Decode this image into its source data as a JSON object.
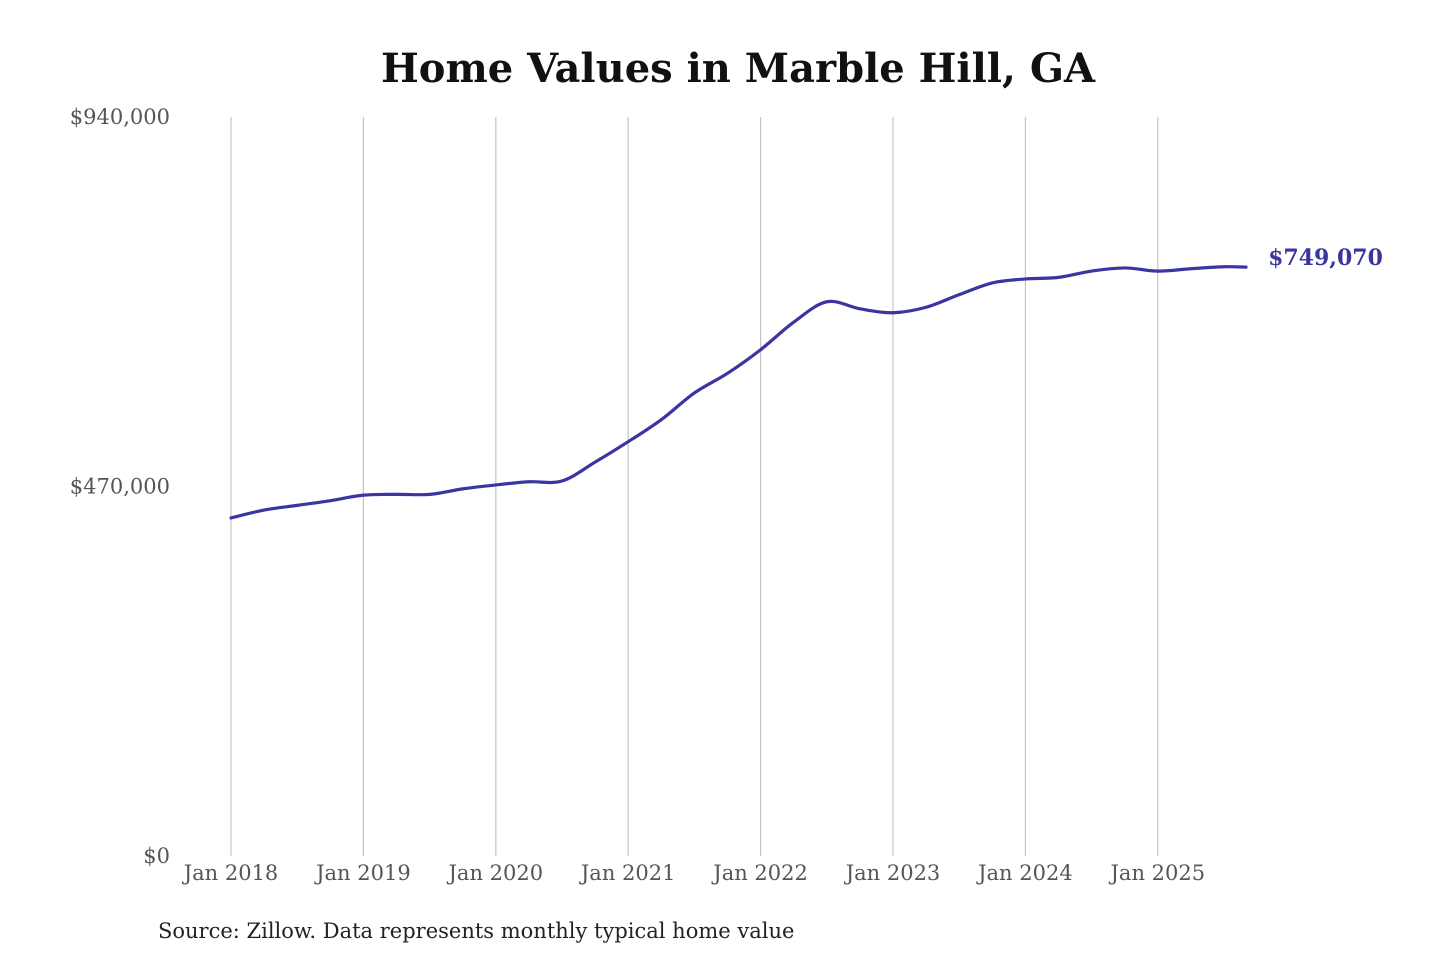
{
  "chart_data": {
    "type": "line",
    "title": "Home Values in Marble Hill, GA",
    "xlabel": "",
    "ylabel": "",
    "source": "Source: Zillow. Data represents monthly typical home value",
    "ylim": [
      0,
      940000
    ],
    "y_ticks": [
      {
        "value": 0,
        "label": "$0"
      },
      {
        "value": 470000,
        "label": "$470,000"
      },
      {
        "value": 940000,
        "label": "$940,000"
      }
    ],
    "x_ticks": [
      {
        "month_index": 0,
        "label": "Jan 2018"
      },
      {
        "month_index": 12,
        "label": "Jan 2019"
      },
      {
        "month_index": 24,
        "label": "Jan 2020"
      },
      {
        "month_index": 36,
        "label": "Jan 2021"
      },
      {
        "month_index": 48,
        "label": "Jan 2022"
      },
      {
        "month_index": 60,
        "label": "Jan 2023"
      },
      {
        "month_index": 72,
        "label": "Jan 2024"
      },
      {
        "month_index": 84,
        "label": "Jan 2025"
      }
    ],
    "x_unit": "months since Jan 2018",
    "grid": "vertical",
    "series": [
      {
        "name": "Typical home value",
        "color": "#3a35a0",
        "end_label": "$749,070",
        "x": [
          0,
          3,
          6,
          9,
          12,
          15,
          18,
          21,
          24,
          27,
          30,
          33,
          36,
          39,
          42,
          45,
          48,
          51,
          54,
          57,
          60,
          63,
          66,
          69,
          72,
          75,
          78,
          81,
          84,
          87,
          90,
          92
        ],
        "y": [
          430000,
          440000,
          446000,
          452000,
          459000,
          460000,
          460000,
          467000,
          472000,
          476000,
          477000,
          501000,
          527000,
          555000,
          589000,
          614000,
          644000,
          679000,
          705000,
          696000,
          691000,
          698000,
          714000,
          729000,
          734000,
          736000,
          744000,
          748000,
          744000,
          747000,
          749500,
          749070
        ]
      }
    ]
  }
}
